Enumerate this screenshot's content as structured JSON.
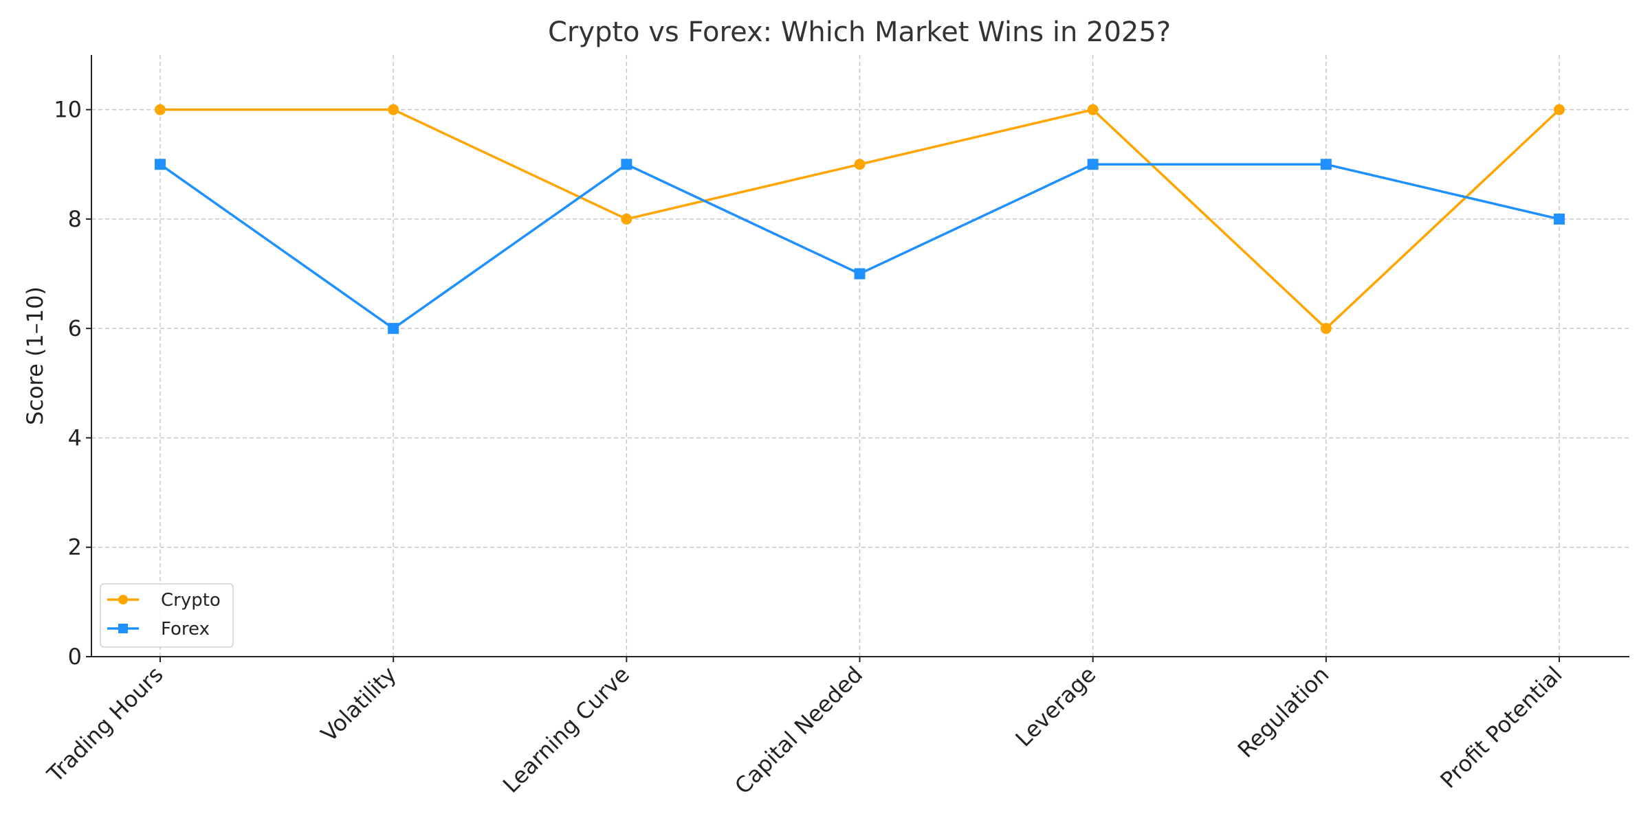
{
  "chart_data": {
    "type": "line",
    "title": "Crypto vs Forex: Which Market Wins in 2025?",
    "xlabel": "",
    "ylabel": "Score (1–10)",
    "categories": [
      "Trading Hours",
      "Volatility",
      "Learning Curve",
      "Capital Needed",
      "Leverage",
      "Regulation",
      "Profit Potential"
    ],
    "ylim": [
      0,
      11
    ],
    "yticks": [
      0,
      2,
      4,
      6,
      8,
      10
    ],
    "grid": true,
    "legend_position": "lower-left",
    "series": [
      {
        "name": "Crypto",
        "values": [
          10,
          10,
          8,
          9,
          10,
          6,
          10
        ],
        "color": "#FFA500",
        "marker": "circle"
      },
      {
        "name": "Forex",
        "values": [
          9,
          6,
          9,
          7,
          9,
          9,
          8
        ],
        "color": "#1E90FF",
        "marker": "square"
      }
    ]
  }
}
